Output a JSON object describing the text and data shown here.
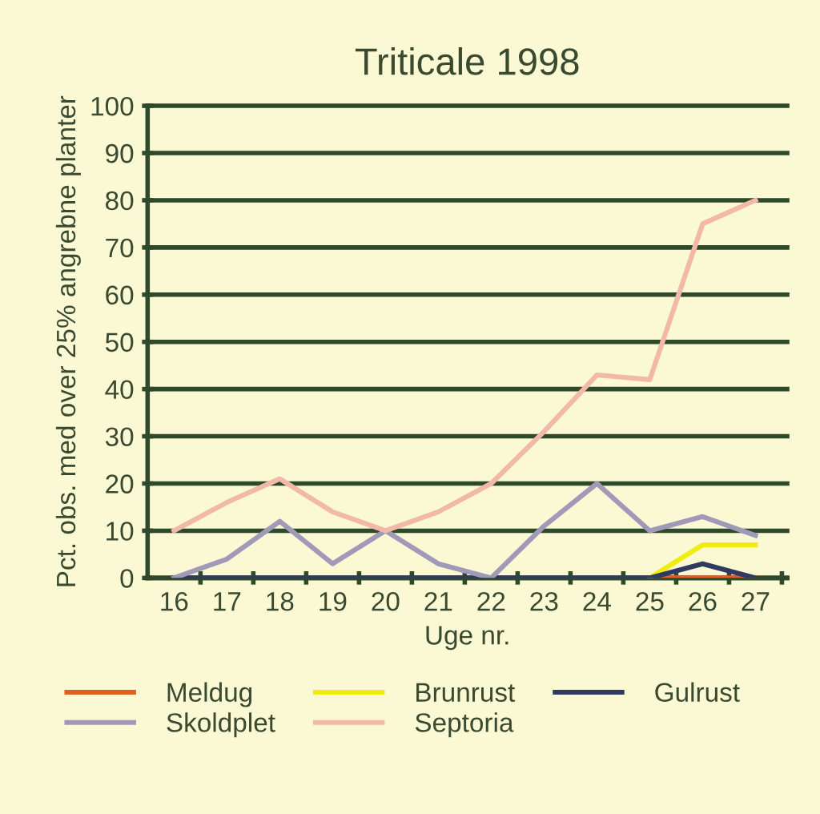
{
  "chart_data": {
    "type": "line",
    "title": "Triticale 1998",
    "xlabel": "Uge nr.",
    "ylabel": "Pct. obs. med over 25% angrebne planter",
    "categories": [
      "16",
      "17",
      "18",
      "19",
      "20",
      "21",
      "22",
      "23",
      "24",
      "25",
      "26",
      "27"
    ],
    "series": [
      {
        "name": "Meldug",
        "color": "#e06020",
        "values": [
          null,
          null,
          null,
          null,
          null,
          null,
          null,
          null,
          null,
          0,
          0,
          0
        ]
      },
      {
        "name": "Brunrust",
        "color": "#f0ec10",
        "values": [
          null,
          null,
          null,
          null,
          null,
          null,
          null,
          null,
          null,
          0,
          7,
          7
        ]
      },
      {
        "name": "Gulrust",
        "color": "#303a60",
        "values": [
          0,
          0,
          0,
          0,
          0,
          0,
          0,
          0,
          0,
          0,
          3,
          0
        ]
      },
      {
        "name": "Skoldplet",
        "color": "#a09ab8",
        "values": [
          0,
          4,
          12,
          3,
          10,
          3,
          0,
          11,
          20,
          10,
          13,
          9
        ]
      },
      {
        "name": "Septoria",
        "color": "#f2b8a8",
        "values": [
          10,
          16,
          21,
          14,
          10,
          14,
          20,
          31,
          43,
          42,
          75,
          80
        ]
      }
    ],
    "ylim": [
      0,
      100
    ],
    "yticks": [
      0,
      10,
      20,
      30,
      40,
      50,
      60,
      70,
      80,
      90,
      100
    ],
    "grid": "y",
    "legend": "bottom",
    "marker": "none",
    "line_style": "solid"
  }
}
